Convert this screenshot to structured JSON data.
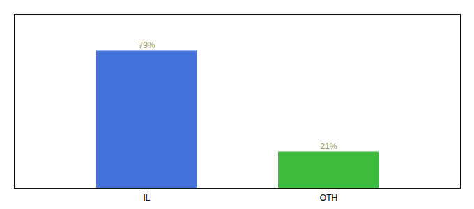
{
  "chart_data": {
    "type": "bar",
    "categories": [
      "IL",
      "OTH"
    ],
    "values": [
      79,
      21
    ],
    "value_labels": [
      "79%",
      "21%"
    ],
    "colors": [
      "#4472db",
      "#3dbb3d"
    ],
    "ylim": [
      0,
      100
    ],
    "data_labels": true,
    "tick_labels": "x",
    "grid": false
  }
}
